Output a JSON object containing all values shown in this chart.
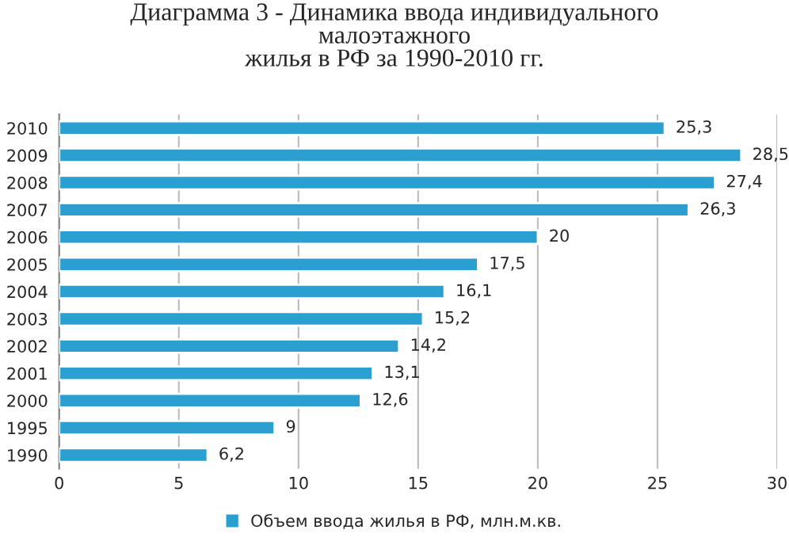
{
  "chart_data": {
    "type": "bar",
    "orientation": "horizontal",
    "title": "Диаграмма 3 - Динамика ввода индивидуального\nмалоэтажного\nжилья в РФ за 1990-2010 гг.",
    "categories": [
      "2010",
      "2009",
      "2008",
      "2007",
      "2006",
      "2005",
      "2004",
      "2003",
      "2002",
      "2001",
      "2000",
      "1995",
      "1990"
    ],
    "series": [
      {
        "name": "Объем ввода жилья в РФ, млн.м.кв.",
        "color": "#2a9fd0",
        "values": [
          25.3,
          28.5,
          27.4,
          26.3,
          20,
          17.5,
          16.1,
          15.2,
          14.2,
          13.1,
          12.6,
          9,
          6.2
        ],
        "value_labels": [
          "25,3",
          "28,5",
          "27,4",
          "26,3",
          "20",
          "17,5",
          "16,1",
          "15,2",
          "14,2",
          "13,1",
          "12,6",
          "9",
          "6,2"
        ]
      }
    ],
    "xlim": [
      0,
      30
    ],
    "xticks": [
      0,
      5,
      10,
      15,
      20,
      25,
      30
    ],
    "grid": "x",
    "legend": "bottom"
  }
}
